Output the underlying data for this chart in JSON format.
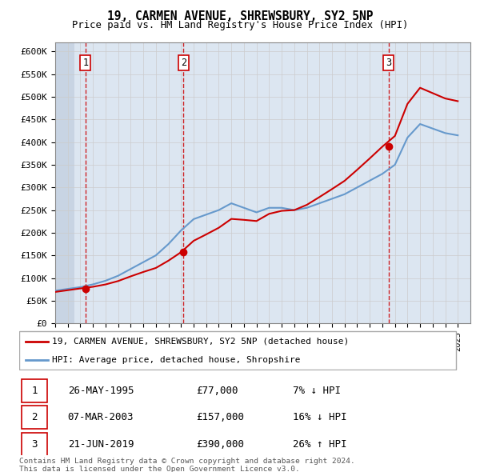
{
  "title": "19, CARMEN AVENUE, SHREWSBURY, SY2 5NP",
  "subtitle": "Price paid vs. HM Land Registry's House Price Index (HPI)",
  "ylabel_ticks": [
    "£0",
    "£50K",
    "£100K",
    "£150K",
    "£200K",
    "£250K",
    "£300K",
    "£350K",
    "£400K",
    "£450K",
    "£500K",
    "£550K",
    "£600K"
  ],
  "ylim": [
    0,
    620000
  ],
  "ytick_values": [
    0,
    50000,
    100000,
    150000,
    200000,
    250000,
    300000,
    350000,
    400000,
    450000,
    500000,
    550000,
    600000
  ],
  "xmin": 1993,
  "xmax": 2026,
  "transactions": [
    {
      "num": 1,
      "date": "26-MAY-1995",
      "price": 77000,
      "price_str": "£77,000",
      "year": 1995.4,
      "pct": "7%",
      "dir": "↓"
    },
    {
      "num": 2,
      "date": "07-MAR-2003",
      "price": 157000,
      "price_str": "£157,000",
      "year": 2003.2,
      "pct": "16%",
      "dir": "↓"
    },
    {
      "num": 3,
      "date": "21-JUN-2019",
      "price": 390000,
      "price_str": "£390,000",
      "year": 2019.5,
      "pct": "26%",
      "dir": "↑"
    }
  ],
  "legend_property_label": "19, CARMEN AVENUE, SHREWSBURY, SY2 5NP (detached house)",
  "legend_hpi_label": "HPI: Average price, detached house, Shropshire",
  "footer1": "Contains HM Land Registry data © Crown copyright and database right 2024.",
  "footer2": "This data is licensed under the Open Government Licence v3.0.",
  "property_line_color": "#cc0000",
  "hpi_line_color": "#6699cc",
  "transaction_marker_color": "#cc0000",
  "vline_color": "#cc0000",
  "grid_color": "#cccccc",
  "bg_color": "#dce6f1",
  "years_hpi": [
    1993,
    1994,
    1995,
    1996,
    1997,
    1998,
    1999,
    2000,
    2001,
    2002,
    2003,
    2004,
    2005,
    2006,
    2007,
    2008,
    2009,
    2010,
    2011,
    2012,
    2013,
    2014,
    2015,
    2016,
    2017,
    2018,
    2019,
    2020,
    2021,
    2022,
    2023,
    2024,
    2025
  ],
  "hpi_values": [
    72000,
    76000,
    80000,
    86000,
    94000,
    105000,
    120000,
    135000,
    150000,
    175000,
    205000,
    230000,
    240000,
    250000,
    265000,
    255000,
    245000,
    255000,
    255000,
    250000,
    255000,
    265000,
    275000,
    285000,
    300000,
    315000,
    330000,
    350000,
    410000,
    440000,
    430000,
    420000,
    415000
  ]
}
